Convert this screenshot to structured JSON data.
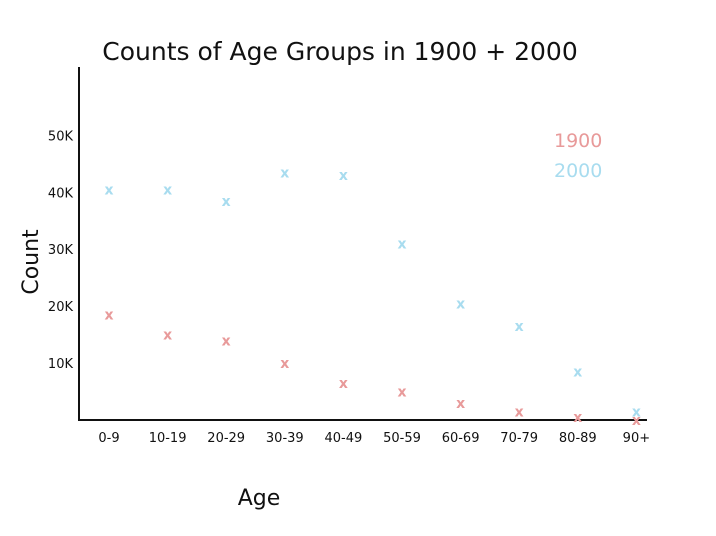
{
  "chart_data": {
    "type": "scatter",
    "title": "Counts of Age Groups in 1900 + 2000",
    "xlabel": "Age",
    "ylabel": "Count",
    "categories": [
      "0-9",
      "10-19",
      "20-29",
      "30-39",
      "40-49",
      "50-59",
      "60-69",
      "70-79",
      "80-89",
      "90+"
    ],
    "yticks": [
      {
        "value": 10000,
        "label": "10K"
      },
      {
        "value": 20000,
        "label": "20K"
      },
      {
        "value": 30000,
        "label": "30K"
      },
      {
        "value": 40000,
        "label": "40K"
      },
      {
        "value": 50000,
        "label": "50K"
      }
    ],
    "ylim": [
      0,
      62000
    ],
    "grid": false,
    "legend_position": "top-right",
    "marker": "x",
    "series": [
      {
        "name": "1900",
        "color": "#e89a9a",
        "values": [
          18500,
          15000,
          14000,
          10000,
          6500,
          5000,
          3000,
          1500,
          500,
          0
        ]
      },
      {
        "name": "2000",
        "color": "#a8dcef",
        "values": [
          40500,
          40500,
          38500,
          43500,
          43000,
          31000,
          20500,
          16500,
          8500,
          1500
        ]
      }
    ]
  }
}
